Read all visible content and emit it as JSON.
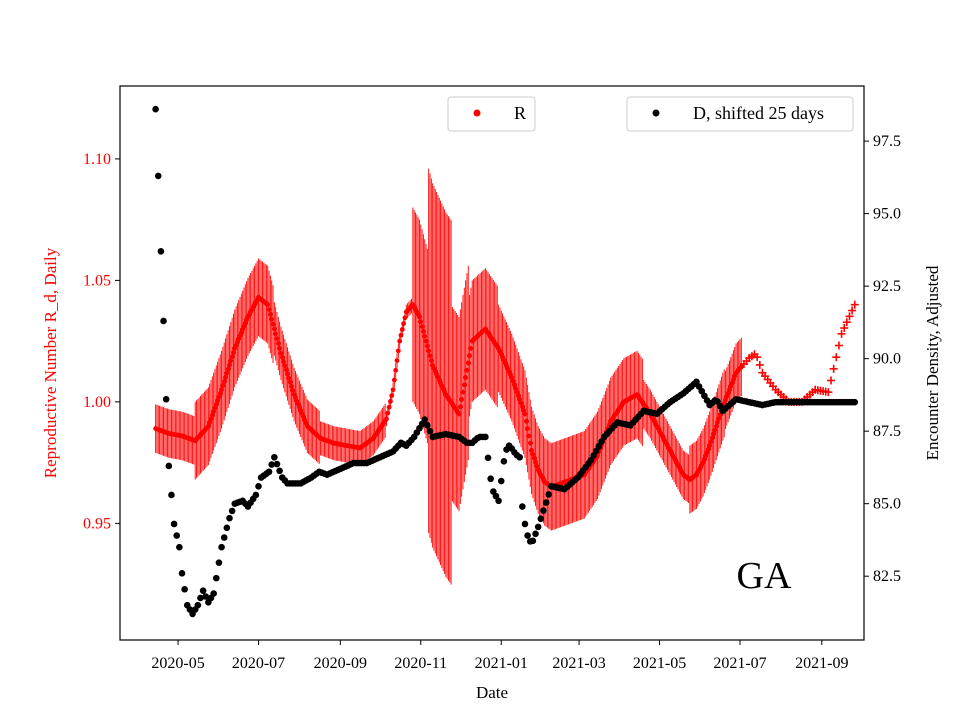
{
  "chart_data": {
    "type": "scatter",
    "annotation": "GA",
    "xlabel": "Date",
    "ylabel_left": "Reproductive Number R_d, Daily",
    "ylabel_right": "Encounter Density, Adjusted",
    "x_ticks": [
      "2020-05",
      "2020-07",
      "2020-09",
      "2020-11",
      "2021-01",
      "2021-03",
      "2021-05",
      "2021-07",
      "2021-09"
    ],
    "x_tick_days": [
      17,
      78,
      140,
      201,
      262,
      321,
      382,
      443,
      505
    ],
    "x_range_days": [
      -27,
      537
    ],
    "y_left_ticks": [
      "0.95",
      "1.00",
      "1.05",
      "1.10"
    ],
    "y_left_range": [
      0.902,
      1.13
    ],
    "y_right_ticks": [
      "82.5",
      "85.0",
      "87.5",
      "90.0",
      "92.5",
      "95.0",
      "97.5"
    ],
    "y_right_range": [
      80.3,
      99.4
    ],
    "legend": [
      {
        "label": "R",
        "color": "#ff0000",
        "marker": "dot",
        "position": "top-center"
      },
      {
        "label": "D, shifted 25 days",
        "color": "#000000",
        "marker": "dot",
        "position": "top-right"
      }
    ],
    "series": [
      {
        "name": "R",
        "axis": "left",
        "color": "#ff0000",
        "x_days": [
          0,
          10,
          20,
          30,
          40,
          50,
          60,
          70,
          78,
          85,
          95,
          105,
          115,
          125,
          135,
          145,
          155,
          165,
          175,
          180,
          185,
          190,
          195,
          200,
          205,
          210,
          220,
          230,
          240,
          250,
          260,
          270,
          280,
          285,
          290,
          295,
          300,
          305,
          315,
          325,
          335,
          345,
          355,
          365,
          375,
          385,
          395,
          400,
          405,
          410,
          415,
          420,
          430,
          440,
          450,
          455,
          460,
          470,
          480,
          490,
          500,
          510,
          520,
          530
        ],
        "values": [
          0.989,
          0.987,
          0.986,
          0.984,
          0.99,
          1.005,
          1.022,
          1.035,
          1.043,
          1.04,
          1.02,
          1.003,
          0.99,
          0.985,
          0.983,
          0.982,
          0.981,
          0.985,
          0.993,
          1.005,
          1.025,
          1.037,
          1.04,
          1.035,
          1.025,
          1.015,
          1.003,
          0.995,
          1.025,
          1.03,
          1.022,
          1.01,
          0.995,
          0.98,
          0.972,
          0.967,
          0.965,
          0.966,
          0.968,
          0.97,
          0.978,
          0.992,
          1.0,
          1.003,
          0.995,
          0.985,
          0.975,
          0.97,
          0.968,
          0.97,
          0.975,
          0.982,
          0.998,
          1.012,
          1.018,
          1.02,
          1.012,
          1.005,
          1.0,
          1.0,
          1.005,
          1.004,
          1.028,
          1.04
        ],
        "oscillation": [
          {
            "from_day": 0,
            "to_day": 30,
            "amplitude": 0.01
          },
          {
            "from_day": 30,
            "to_day": 90,
            "amplitude": 0.016
          },
          {
            "from_day": 90,
            "to_day": 125,
            "amplitude": 0.011
          },
          {
            "from_day": 125,
            "to_day": 175,
            "amplitude": 0.007
          },
          {
            "from_day": 175,
            "to_day": 195,
            "amplitude": 0.003
          },
          {
            "from_day": 195,
            "to_day": 207,
            "amplitude": 0.04
          },
          {
            "from_day": 207,
            "to_day": 225,
            "amplitude": 0.075
          },
          {
            "from_day": 225,
            "to_day": 238,
            "amplitude": 0.04
          },
          {
            "from_day": 238,
            "to_day": 260,
            "amplitude": 0.025
          },
          {
            "from_day": 260,
            "to_day": 285,
            "amplitude": 0.018
          },
          {
            "from_day": 285,
            "to_day": 370,
            "amplitude": 0.018
          },
          {
            "from_day": 370,
            "to_day": 405,
            "amplitude": 0.01
          },
          {
            "from_day": 405,
            "to_day": 432,
            "amplitude": 0.014
          },
          {
            "from_day": 432,
            "to_day": 445,
            "amplitude": 0.012
          }
        ],
        "cross_markers_from_day": 445
      },
      {
        "name": "D, shifted 25 days",
        "axis": "right",
        "color": "#000000",
        "x_days": [
          0,
          2,
          4,
          6,
          8,
          10,
          14,
          18,
          20,
          24,
          28,
          32,
          36,
          40,
          44,
          50,
          56,
          60,
          66,
          70,
          76,
          80,
          86,
          90,
          96,
          100,
          110,
          118,
          124,
          130,
          140,
          150,
          160,
          170,
          180,
          186,
          190,
          196,
          200,
          204,
          210,
          220,
          230,
          236,
          240,
          245,
          250,
          255,
          260,
          265,
          268,
          270,
          273,
          276,
          278,
          281,
          285,
          290,
          300,
          310,
          320,
          330,
          340,
          350,
          360,
          370,
          380,
          390,
          400,
          405,
          410,
          420,
          425,
          430,
          440,
          450,
          460,
          470,
          480,
          490,
          500,
          510,
          520,
          530
        ],
        "values": [
          98.6,
          96.3,
          93.7,
          91.3,
          88.6,
          86.3,
          84.3,
          83.5,
          82.6,
          81.5,
          81.2,
          81.5,
          82.0,
          81.6,
          81.9,
          83.5,
          84.5,
          85.0,
          85.1,
          84.9,
          85.3,
          85.9,
          86.1,
          86.6,
          85.9,
          85.7,
          85.7,
          85.9,
          86.1,
          86.0,
          86.2,
          86.4,
          86.4,
          86.6,
          86.8,
          87.1,
          87.0,
          87.3,
          87.6,
          87.9,
          87.3,
          87.4,
          87.3,
          87.1,
          87.1,
          87.3,
          87.3,
          85.5,
          85.1,
          86.8,
          87.0,
          86.9,
          86.7,
          86.6,
          84.9,
          84.0,
          83.6,
          84.2,
          85.6,
          85.5,
          85.9,
          86.5,
          87.3,
          87.8,
          87.7,
          88.2,
          88.1,
          88.5,
          88.8,
          89.0,
          89.2,
          88.4,
          88.6,
          88.2,
          88.6,
          88.5,
          88.4,
          88.5,
          88.5,
          88.5,
          88.5,
          88.5,
          88.5,
          88.5
        ]
      }
    ]
  }
}
